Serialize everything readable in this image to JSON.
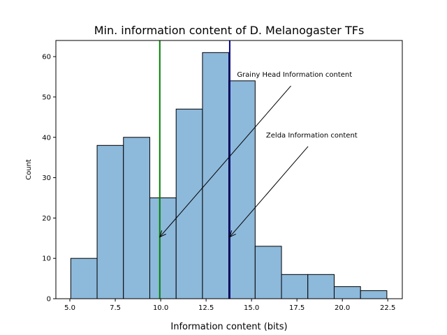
{
  "chart_data": {
    "type": "bar",
    "title": "Min. information content of D. Melanogaster TFs",
    "xlabel": "Information content (bits)",
    "ylabel": "Count",
    "xlim": [
      4.23,
      23.3
    ],
    "ylim": [
      0,
      64
    ],
    "xticks": [
      5.0,
      7.5,
      10.0,
      12.5,
      15.0,
      17.5,
      20.0,
      22.5
    ],
    "xtick_labels": [
      "5.0",
      "7.5",
      "10.0",
      "12.5",
      "15.0",
      "17.5",
      "20.0",
      "22.5"
    ],
    "yticks": [
      0,
      10,
      20,
      30,
      40,
      50,
      60
    ],
    "ytick_labels": [
      "0",
      "10",
      "20",
      "30",
      "40",
      "50",
      "60"
    ],
    "bin_edges": [
      5.05,
      6.5,
      7.95,
      9.4,
      10.85,
      12.3,
      13.75,
      15.2,
      16.65,
      18.1,
      19.55,
      21.0,
      22.45
    ],
    "values": [
      10,
      38,
      40,
      25,
      47,
      61,
      54,
      13,
      6,
      6,
      3,
      2
    ],
    "bar_color": "#8db9db",
    "vlines": [
      {
        "x": 9.95,
        "color": "#008000"
      },
      {
        "x": 13.8,
        "color": "#00008b"
      }
    ],
    "annotations": [
      {
        "text": "Grainy Head Information content",
        "xytext": [
          14.2,
          55.0
        ],
        "xy": [
          9.95,
          15.3
        ]
      },
      {
        "text": "Zelda Information content",
        "xytext": [
          15.8,
          40.0
        ],
        "xy": [
          13.8,
          15.3
        ]
      }
    ]
  }
}
